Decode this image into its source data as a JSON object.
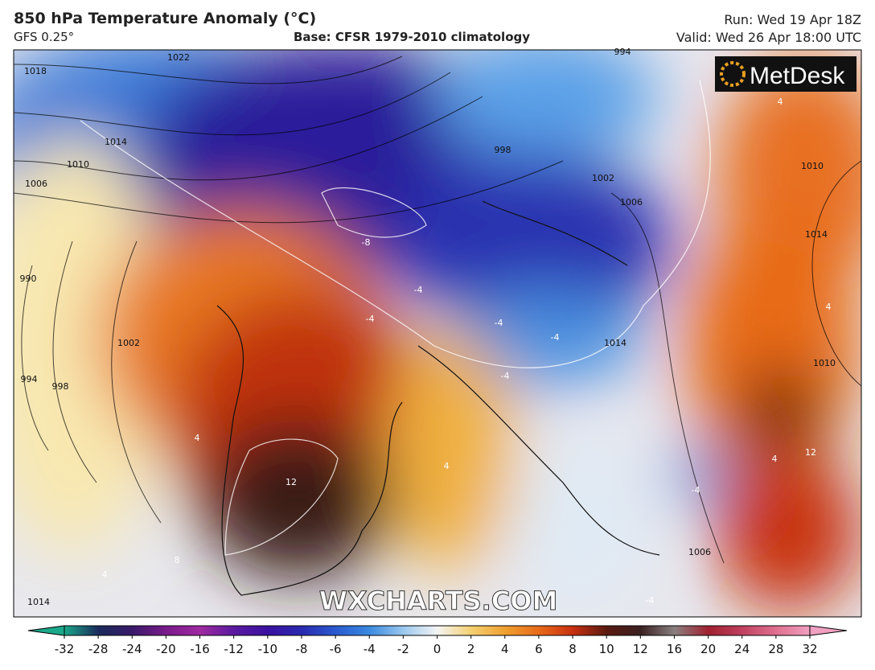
{
  "header": {
    "title": "850 hPa Temperature Anomaly (°C)",
    "model": "GFS 0.25°",
    "base": "Base: CFSR 1979-2010 climatology",
    "run": "Run: Wed 19 Apr 18Z",
    "valid": "Valid: Wed 26 Apr 18:00 UTC"
  },
  "logo": "MetDesk",
  "watermark": "WXCHARTS.COM",
  "pressure_labels": [
    1022,
    1018,
    1014,
    1010,
    1006,
    990,
    994,
    998,
    1002,
    994,
    998,
    1002,
    1006,
    1010,
    1014,
    1010,
    1014,
    1006,
    1014
  ],
  "anomaly_labels": [
    -8,
    -4,
    -4,
    -4,
    -4,
    -4,
    4,
    4,
    12,
    8,
    4,
    4,
    12,
    4,
    -4,
    4,
    -4
  ],
  "colorbar": {
    "ticks": [
      -32,
      -28,
      -24,
      -20,
      -16,
      -12,
      -10,
      -8,
      -6,
      -4,
      -2,
      0,
      2,
      4,
      6,
      8,
      10,
      12,
      16,
      20,
      24,
      28,
      32
    ],
    "colors": [
      "#1aa88a",
      "#1a2a5a",
      "#3a1a6a",
      "#7a1a8a",
      "#a02aa0",
      "#5a1aa0",
      "#3a10a0",
      "#2a2ab0",
      "#2a5ad0",
      "#3a8ae0",
      "#9ac8ee",
      "#f4f4f4",
      "#f4d070",
      "#f0a030",
      "#e86a18",
      "#c83010",
      "#5a1a10",
      "#3a2020",
      "#8a8080",
      "#a02030",
      "#c04060",
      "#e07090",
      "#f0a0c0"
    ]
  }
}
